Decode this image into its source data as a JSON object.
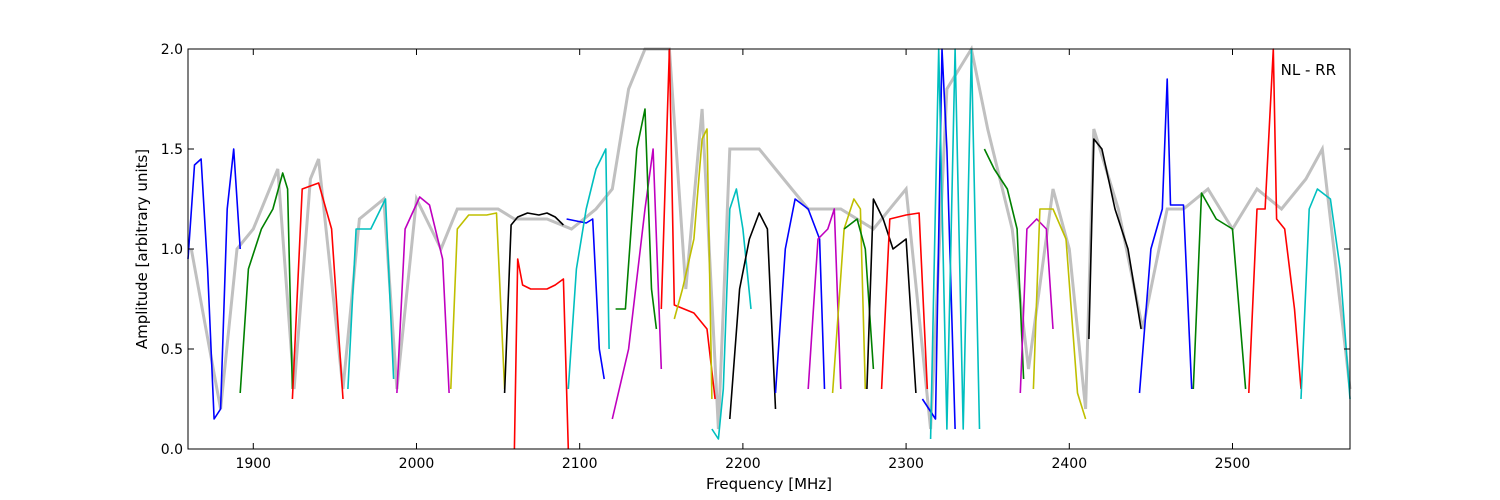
{
  "chart_data": {
    "type": "line",
    "title": "",
    "xlabel": "Frequency [MHz]",
    "ylabel": "Amplitude [arbitrary units]",
    "annotation": "NL - RR",
    "xlim": [
      1860,
      2572
    ],
    "ylim": [
      0.0,
      2.0
    ],
    "xticks": [
      1900,
      2000,
      2100,
      2200,
      2300,
      2400,
      2500
    ],
    "xtick_labels": [
      "1900",
      "2000",
      "2100",
      "2200",
      "2300",
      "2400",
      "2500"
    ],
    "yticks": [
      0.0,
      0.5,
      1.0,
      1.5,
      2.0
    ],
    "ytick_labels": [
      "0.0",
      "0.5",
      "1.0",
      "1.5",
      "2.0"
    ],
    "grid": false,
    "background_color": "#c0c0c0",
    "background": [
      [
        1862,
        1.0
      ],
      [
        1880,
        0.2
      ],
      [
        1890,
        1.0
      ],
      [
        1900,
        1.1
      ],
      [
        1915,
        1.4
      ],
      [
        1925,
        0.3
      ],
      [
        1935,
        1.35
      ],
      [
        1940,
        1.45
      ],
      [
        1955,
        0.3
      ],
      [
        1965,
        1.15
      ],
      [
        1980,
        1.25
      ],
      [
        1988,
        0.3
      ],
      [
        2000,
        1.25
      ],
      [
        2015,
        1.0
      ],
      [
        2025,
        1.2
      ],
      [
        2050,
        1.2
      ],
      [
        2060,
        1.15
      ],
      [
        2080,
        1.15
      ],
      [
        2095,
        1.1
      ],
      [
        2110,
        1.2
      ],
      [
        2120,
        1.3
      ],
      [
        2130,
        1.8
      ],
      [
        2140,
        2.0
      ],
      [
        2155,
        2.0
      ],
      [
        2165,
        0.8
      ],
      [
        2175,
        1.7
      ],
      [
        2185,
        0.1
      ],
      [
        2192,
        1.5
      ],
      [
        2200,
        1.5
      ],
      [
        2210,
        1.5
      ],
      [
        2220,
        1.4
      ],
      [
        2230,
        1.3
      ],
      [
        2240,
        1.2
      ],
      [
        2260,
        1.2
      ],
      [
        2280,
        1.1
      ],
      [
        2300,
        1.3
      ],
      [
        2315,
        0.1
      ],
      [
        2325,
        1.8
      ],
      [
        2340,
        2.0
      ],
      [
        2350,
        1.6
      ],
      [
        2365,
        1.1
      ],
      [
        2375,
        0.4
      ],
      [
        2390,
        1.3
      ],
      [
        2400,
        1.0
      ],
      [
        2410,
        0.2
      ],
      [
        2415,
        1.6
      ],
      [
        2430,
        1.2
      ],
      [
        2445,
        0.6
      ],
      [
        2460,
        1.2
      ],
      [
        2470,
        1.2
      ],
      [
        2485,
        1.3
      ],
      [
        2500,
        1.1
      ],
      [
        2515,
        1.3
      ],
      [
        2530,
        1.2
      ],
      [
        2545,
        1.35
      ],
      [
        2555,
        1.5
      ],
      [
        2572,
        0.3
      ]
    ],
    "series": [
      {
        "color": "#0000ff",
        "points": [
          [
            1860,
            0.95
          ],
          [
            1864,
            1.42
          ],
          [
            1868,
            1.45
          ],
          [
            1872,
            0.9
          ],
          [
            1876,
            0.15
          ],
          [
            1880,
            0.2
          ],
          [
            1884,
            1.2
          ],
          [
            1888,
            1.5
          ],
          [
            1892,
            1.0
          ]
        ]
      },
      {
        "color": "#008000",
        "points": [
          [
            1892,
            0.28
          ],
          [
            1897,
            0.9
          ],
          [
            1905,
            1.1
          ],
          [
            1912,
            1.2
          ],
          [
            1918,
            1.38
          ],
          [
            1921,
            1.3
          ],
          [
            1924,
            0.3
          ]
        ]
      },
      {
        "color": "#ff0000",
        "points": [
          [
            1924,
            0.25
          ],
          [
            1930,
            1.3
          ],
          [
            1940,
            1.33
          ],
          [
            1948,
            1.1
          ],
          [
            1955,
            0.25
          ]
        ]
      },
      {
        "color": "#00bfbf",
        "points": [
          [
            1958,
            0.3
          ],
          [
            1963,
            1.1
          ],
          [
            1972,
            1.1
          ],
          [
            1981,
            1.25
          ],
          [
            1986,
            0.35
          ]
        ]
      },
      {
        "color": "#bf00bf",
        "points": [
          [
            1988,
            0.28
          ],
          [
            1993,
            1.1
          ],
          [
            2002,
            1.26
          ],
          [
            2008,
            1.22
          ],
          [
            2016,
            0.95
          ],
          [
            2020,
            0.28
          ]
        ]
      },
      {
        "color": "#bfbf00",
        "points": [
          [
            2021,
            0.3
          ],
          [
            2025,
            1.1
          ],
          [
            2032,
            1.17
          ],
          [
            2043,
            1.17
          ],
          [
            2049,
            1.18
          ],
          [
            2054,
            0.3
          ]
        ]
      },
      {
        "color": "#000000",
        "points": [
          [
            2054,
            0.28
          ],
          [
            2058,
            1.12
          ],
          [
            2062,
            1.16
          ],
          [
            2068,
            1.18
          ],
          [
            2075,
            1.17
          ],
          [
            2080,
            1.18
          ],
          [
            2085,
            1.16
          ],
          [
            2090,
            1.12
          ]
        ]
      },
      {
        "color": "#ff0000",
        "points": [
          [
            2060,
            0.0
          ],
          [
            2062,
            0.95
          ],
          [
            2065,
            0.82
          ],
          [
            2070,
            0.8
          ],
          [
            2075,
            0.8
          ],
          [
            2080,
            0.8
          ],
          [
            2085,
            0.82
          ],
          [
            2090,
            0.85
          ],
          [
            2093,
            0.0
          ]
        ]
      },
      {
        "color": "#0000ff",
        "points": [
          [
            2092,
            1.15
          ],
          [
            2098,
            1.14
          ],
          [
            2104,
            1.13
          ],
          [
            2108,
            1.15
          ],
          [
            2112,
            0.5
          ],
          [
            2115,
            0.35
          ]
        ]
      },
      {
        "color": "#00bfbf",
        "points": [
          [
            2093,
            0.3
          ],
          [
            2098,
            0.9
          ],
          [
            2104,
            1.2
          ],
          [
            2110,
            1.4
          ],
          [
            2116,
            1.5
          ],
          [
            2118,
            0.5
          ]
        ]
      },
      {
        "color": "#bf00bf",
        "points": [
          [
            2120,
            0.15
          ],
          [
            2130,
            0.5
          ],
          [
            2140,
            1.2
          ],
          [
            2145,
            1.5
          ],
          [
            2150,
            0.4
          ]
        ]
      },
      {
        "color": "#008000",
        "points": [
          [
            2122,
            0.7
          ],
          [
            2128,
            0.7
          ],
          [
            2135,
            1.5
          ],
          [
            2140,
            1.7
          ],
          [
            2144,
            0.8
          ],
          [
            2147,
            0.6
          ]
        ]
      },
      {
        "color": "#ff0000",
        "points": [
          [
            2150,
            0.7
          ],
          [
            2155,
            2.0
          ],
          [
            2158,
            0.72
          ],
          [
            2170,
            0.68
          ],
          [
            2178,
            0.6
          ],
          [
            2183,
            0.25
          ]
        ]
      },
      {
        "color": "#bfbf00",
        "points": [
          [
            2158,
            0.65
          ],
          [
            2163,
            0.8
          ],
          [
            2170,
            1.05
          ],
          [
            2175,
            1.55
          ],
          [
            2178,
            1.6
          ],
          [
            2181,
            0.25
          ]
        ]
      },
      {
        "color": "#00bfbf",
        "points": [
          [
            2181,
            0.1
          ],
          [
            2185,
            0.05
          ],
          [
            2188,
            0.3
          ],
          [
            2192,
            1.2
          ],
          [
            2196,
            1.3
          ],
          [
            2200,
            1.1
          ],
          [
            2205,
            0.7
          ]
        ]
      },
      {
        "color": "#000000",
        "points": [
          [
            2192,
            0.15
          ],
          [
            2198,
            0.8
          ],
          [
            2204,
            1.05
          ],
          [
            2210,
            1.18
          ],
          [
            2215,
            1.1
          ],
          [
            2220,
            0.2
          ]
        ]
      },
      {
        "color": "#0000ff",
        "points": [
          [
            2220,
            0.28
          ],
          [
            2226,
            1.0
          ],
          [
            2232,
            1.25
          ],
          [
            2240,
            1.2
          ],
          [
            2247,
            1.05
          ],
          [
            2250,
            0.3
          ]
        ]
      },
      {
        "color": "#bf00bf",
        "points": [
          [
            2240,
            0.3
          ],
          [
            2246,
            1.05
          ],
          [
            2252,
            1.1
          ],
          [
            2256,
            1.2
          ],
          [
            2260,
            0.3
          ]
        ]
      },
      {
        "color": "#bfbf00",
        "points": [
          [
            2255,
            0.28
          ],
          [
            2262,
            1.1
          ],
          [
            2268,
            1.25
          ],
          [
            2272,
            1.2
          ],
          [
            2275,
            0.3
          ]
        ]
      },
      {
        "color": "#008000",
        "points": [
          [
            2262,
            1.1
          ],
          [
            2270,
            1.15
          ],
          [
            2275,
            1.0
          ],
          [
            2280,
            0.4
          ]
        ]
      },
      {
        "color": "#000000",
        "points": [
          [
            2276,
            0.3
          ],
          [
            2280,
            1.25
          ],
          [
            2286,
            1.15
          ],
          [
            2292,
            1.0
          ],
          [
            2300,
            1.05
          ],
          [
            2306,
            0.28
          ]
        ]
      },
      {
        "color": "#ff0000",
        "points": [
          [
            2285,
            0.3
          ],
          [
            2290,
            1.15
          ],
          [
            2300,
            1.17
          ],
          [
            2308,
            1.18
          ],
          [
            2313,
            0.3
          ]
        ]
      },
      {
        "color": "#0000ff",
        "points": [
          [
            2310,
            0.25
          ],
          [
            2318,
            0.15
          ],
          [
            2322,
            2.0
          ],
          [
            2325,
            1.5
          ],
          [
            2330,
            0.1
          ]
        ]
      },
      {
        "color": "#00bfbf",
        "points": [
          [
            2315,
            0.05
          ],
          [
            2320,
            2.0
          ],
          [
            2325,
            0.1
          ],
          [
            2330,
            2.0
          ],
          [
            2335,
            0.1
          ],
          [
            2340,
            2.0
          ],
          [
            2345,
            0.1
          ]
        ]
      },
      {
        "color": "#008000",
        "points": [
          [
            2348,
            1.5
          ],
          [
            2354,
            1.4
          ],
          [
            2362,
            1.3
          ],
          [
            2368,
            1.1
          ],
          [
            2372,
            0.35
          ]
        ]
      },
      {
        "color": "#bf00bf",
        "points": [
          [
            2370,
            0.28
          ],
          [
            2374,
            1.1
          ],
          [
            2380,
            1.15
          ],
          [
            2386,
            1.1
          ],
          [
            2390,
            0.6
          ]
        ]
      },
      {
        "color": "#bfbf00",
        "points": [
          [
            2378,
            0.3
          ],
          [
            2382,
            1.2
          ],
          [
            2390,
            1.2
          ],
          [
            2398,
            1.05
          ],
          [
            2405,
            0.28
          ],
          [
            2410,
            0.15
          ]
        ]
      },
      {
        "color": "#000000",
        "points": [
          [
            2412,
            0.55
          ],
          [
            2415,
            1.55
          ],
          [
            2420,
            1.5
          ],
          [
            2428,
            1.2
          ],
          [
            2436,
            1.0
          ],
          [
            2444,
            0.6
          ]
        ]
      },
      {
        "color": "#0000ff",
        "points": [
          [
            2443,
            0.28
          ],
          [
            2450,
            1.0
          ],
          [
            2457,
            1.2
          ],
          [
            2460,
            1.85
          ],
          [
            2462,
            1.22
          ],
          [
            2470,
            1.22
          ],
          [
            2475,
            0.3
          ]
        ]
      },
      {
        "color": "#008000",
        "points": [
          [
            2476,
            0.3
          ],
          [
            2481,
            1.28
          ],
          [
            2490,
            1.15
          ],
          [
            2500,
            1.1
          ],
          [
            2508,
            0.3
          ]
        ]
      },
      {
        "color": "#ff0000",
        "points": [
          [
            2510,
            0.28
          ],
          [
            2515,
            1.2
          ],
          [
            2520,
            1.2
          ],
          [
            2525,
            2.0
          ],
          [
            2527,
            1.15
          ],
          [
            2532,
            1.1
          ],
          [
            2538,
            0.7
          ],
          [
            2542,
            0.3
          ]
        ]
      },
      {
        "color": "#00bfbf",
        "points": [
          [
            2542,
            0.25
          ],
          [
            2547,
            1.2
          ],
          [
            2552,
            1.3
          ],
          [
            2560,
            1.25
          ],
          [
            2566,
            0.9
          ],
          [
            2572,
            0.25
          ]
        ]
      }
    ]
  }
}
